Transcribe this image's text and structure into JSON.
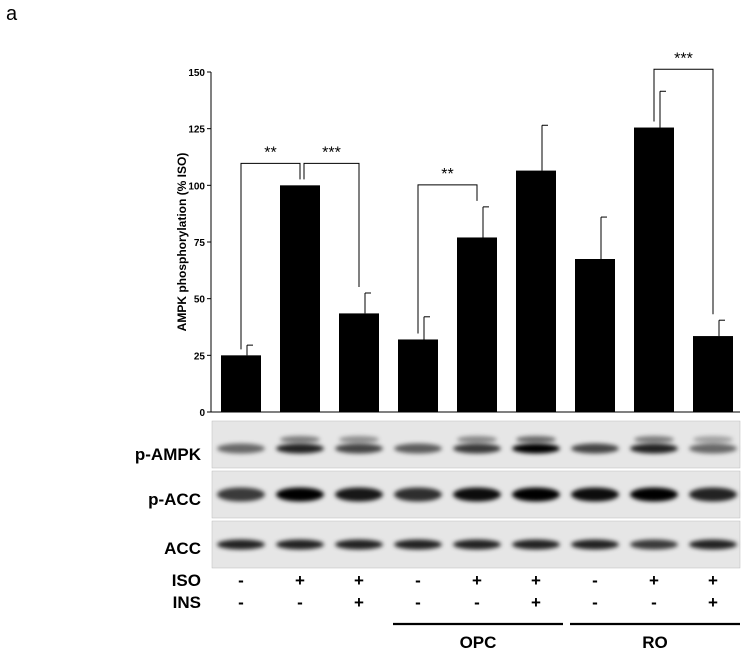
{
  "panel_label": "a",
  "chart_data": {
    "type": "bar",
    "ylabel": "AMPK phosphorylation (% ISO)",
    "ylim": [
      0,
      150
    ],
    "yticks": [
      0,
      25,
      50,
      75,
      100,
      125,
      150
    ],
    "values": [
      25,
      100,
      43.5,
      32,
      77,
      106.5,
      67.5,
      125.5,
      33.5
    ],
    "errors": [
      4.5,
      0,
      9,
      10,
      13.5,
      20,
      18.5,
      16,
      7
    ],
    "bar_color": "#000000",
    "significance": [
      {
        "from": 0,
        "to": 1,
        "label": "**"
      },
      {
        "from": 1,
        "to": 2,
        "label": "***"
      },
      {
        "from": 3,
        "to": 4,
        "label": "**"
      },
      {
        "from": 7,
        "to": 8,
        "label": "***"
      }
    ]
  },
  "blots": [
    {
      "label": "p-AMPK"
    },
    {
      "label": "p-ACC"
    },
    {
      "label": "ACC"
    }
  ],
  "treatments": [
    {
      "label": "ISO",
      "values": [
        "-",
        "+",
        "+",
        "-",
        "+",
        "+",
        "-",
        "+",
        "+"
      ]
    },
    {
      "label": "INS",
      "values": [
        "-",
        "-",
        "+",
        "-",
        "-",
        "+",
        "-",
        "-",
        "+"
      ]
    }
  ],
  "groups": [
    {
      "label": "OPC",
      "from": 3,
      "to": 5
    },
    {
      "label": "RO",
      "from": 6,
      "to": 8
    }
  ]
}
